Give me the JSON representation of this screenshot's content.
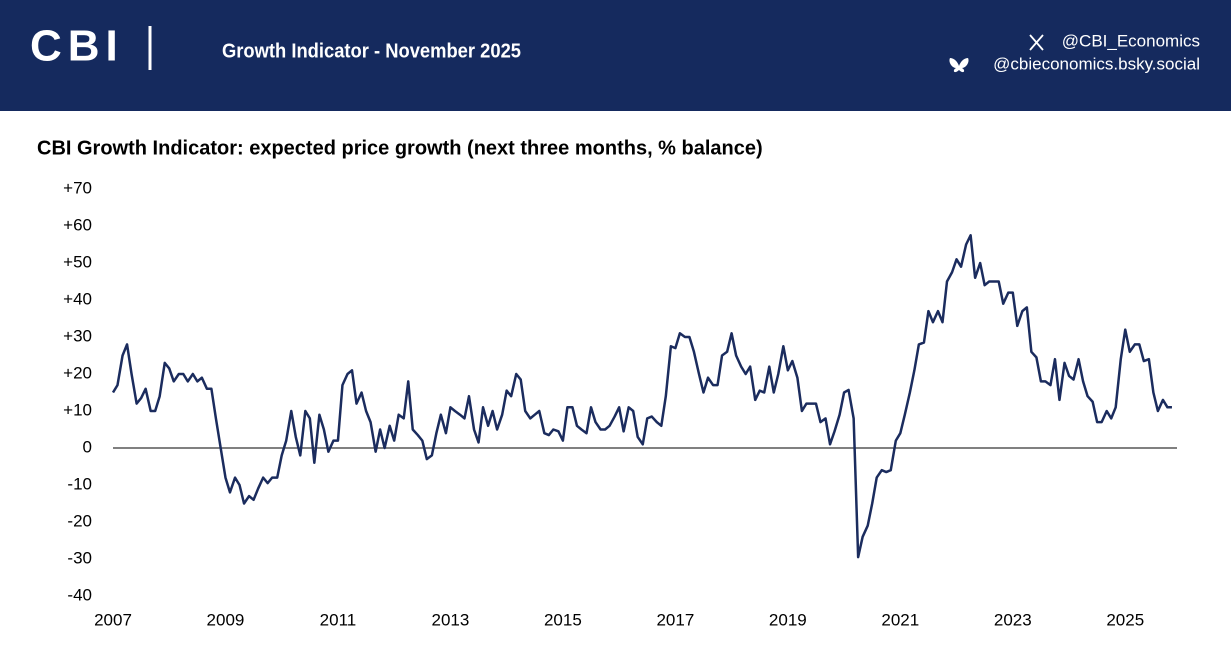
{
  "header": {
    "logo": "CBI",
    "title": "Growth Indicator - November 2025",
    "x_handle": "@CBI_Economics",
    "bsky_handle": "@cbieconomics.bsky.social"
  },
  "chart_data": {
    "type": "line",
    "title": "CBI Growth Indicator: expected price growth (next three months, % balance)",
    "color": "#1b2c5e",
    "x": [
      2007,
      2007.08,
      2007.17,
      2007.25,
      2007.33,
      2007.42,
      2007.5,
      2007.58,
      2007.67,
      2007.75,
      2007.83,
      2007.92,
      2008,
      2008.08,
      2008.17,
      2008.25,
      2008.33,
      2008.42,
      2008.5,
      2008.58,
      2008.67,
      2008.75,
      2008.83,
      2008.92,
      2009,
      2009.08,
      2009.17,
      2009.25,
      2009.33,
      2009.42,
      2009.5,
      2009.58,
      2009.67,
      2009.75,
      2009.83,
      2009.92,
      2010,
      2010.08,
      2010.17,
      2010.25,
      2010.33,
      2010.42,
      2010.5,
      2010.58,
      2010.67,
      2010.75,
      2010.83,
      2010.92,
      2011,
      2011.08,
      2011.17,
      2011.25,
      2011.33,
      2011.42,
      2011.5,
      2011.58,
      2011.67,
      2011.75,
      2011.83,
      2011.92,
      2012,
      2012.08,
      2012.17,
      2012.25,
      2012.33,
      2012.42,
      2012.5,
      2012.58,
      2012.67,
      2012.75,
      2012.83,
      2012.92,
      2013,
      2013.08,
      2013.17,
      2013.25,
      2013.33,
      2013.42,
      2013.5,
      2013.58,
      2013.67,
      2013.75,
      2013.83,
      2013.92,
      2014,
      2014.08,
      2014.17,
      2014.25,
      2014.33,
      2014.42,
      2014.5,
      2014.58,
      2014.67,
      2014.75,
      2014.83,
      2014.92,
      2015,
      2015.08,
      2015.17,
      2015.25,
      2015.33,
      2015.42,
      2015.5,
      2015.58,
      2015.67,
      2015.75,
      2015.83,
      2015.92,
      2016,
      2016.08,
      2016.17,
      2016.25,
      2016.33,
      2016.42,
      2016.5,
      2016.58,
      2016.67,
      2016.75,
      2016.83,
      2016.92,
      2017,
      2017.08,
      2017.17,
      2017.25,
      2017.33,
      2017.42,
      2017.5,
      2017.58,
      2017.67,
      2017.75,
      2017.83,
      2017.92,
      2018,
      2018.08,
      2018.17,
      2018.25,
      2018.33,
      2018.42,
      2018.5,
      2018.58,
      2018.67,
      2018.75,
      2018.83,
      2018.92,
      2019,
      2019.08,
      2019.17,
      2019.25,
      2019.33,
      2019.42,
      2019.5,
      2019.58,
      2019.67,
      2019.75,
      2019.83,
      2019.92,
      2020,
      2020.08,
      2020.17,
      2020.25,
      2020.33,
      2020.42,
      2020.5,
      2020.58,
      2020.67,
      2020.75,
      2020.83,
      2020.92,
      2021,
      2021.08,
      2021.17,
      2021.25,
      2021.33,
      2021.42,
      2021.5,
      2021.58,
      2021.67,
      2021.75,
      2021.83,
      2021.92,
      2022,
      2022.08,
      2022.17,
      2022.25,
      2022.33,
      2022.42,
      2022.5,
      2022.58,
      2022.67,
      2022.75,
      2022.83,
      2022.92,
      2023,
      2023.08,
      2023.17,
      2023.25,
      2023.33,
      2023.42,
      2023.5,
      2023.58,
      2023.67,
      2023.75,
      2023.83,
      2023.92,
      2024,
      2024.08,
      2024.17,
      2024.25,
      2024.33,
      2024.42,
      2024.5,
      2024.58,
      2024.67,
      2024.75,
      2024.83,
      2024.92,
      2025,
      2025.08,
      2025.17,
      2025.25,
      2025.33,
      2025.42,
      2025.5,
      2025.58,
      2025.67,
      2025.75,
      2025.83
    ],
    "values": [
      15,
      17,
      25,
      28,
      20,
      12,
      13.5,
      16,
      10,
      10,
      14,
      23,
      21.5,
      18,
      20,
      20,
      18,
      20,
      18,
      19,
      16,
      16,
      8,
      -0.5,
      -8,
      -12,
      -8,
      -10,
      -15,
      -13,
      -14,
      -11,
      -8,
      -9.5,
      -8,
      -8,
      -2,
      2,
      10,
      3,
      -2,
      10,
      8,
      -4,
      9,
      5,
      -1,
      2,
      2,
      17,
      20,
      21,
      12,
      15,
      10,
      7,
      -1,
      5,
      0,
      6,
      2,
      9,
      8,
      18,
      5,
      3.5,
      2,
      -3,
      -2,
      4,
      9,
      4,
      11,
      10,
      9,
      8,
      14,
      5,
      1.5,
      11,
      6,
      10,
      5,
      9,
      15.5,
      14,
      20,
      18.5,
      10,
      8,
      9,
      10,
      4,
      3.5,
      5,
      4.5,
      2,
      11,
      11,
      6,
      5,
      4,
      11,
      7,
      5,
      5,
      6,
      8.5,
      11,
      4.5,
      11,
      10,
      3,
      1,
      8,
      8.5,
      7,
      6,
      14,
      27.5,
      27,
      31,
      30,
      30,
      26,
      20,
      15,
      19,
      17,
      17,
      25,
      26,
      31,
      25,
      22,
      20,
      22,
      13,
      15.5,
      15,
      22,
      15,
      20,
      27.5,
      21,
      23.5,
      19,
      10,
      12,
      12,
      12,
      7,
      8,
      1,
      4.5,
      9,
      15,
      15.7,
      8,
      -29.5,
      -24,
      -21,
      -15,
      -8,
      -6,
      -6.5,
      -6,
      2,
      4,
      9,
      15,
      21,
      28,
      28.5,
      37,
      34,
      37,
      34,
      45,
      47.5,
      51,
      49,
      55,
      57.5,
      46,
      50,
      44,
      45,
      45,
      45,
      39,
      42,
      42,
      33,
      37,
      38,
      26,
      24.5,
      18,
      18,
      17,
      24,
      13,
      23,
      19.5,
      18.5,
      24,
      18,
      14,
      12.5,
      7,
      7,
      10,
      8,
      11,
      24,
      32,
      26,
      28,
      28,
      23.5,
      24,
      15,
      10,
      13,
      11,
      11
    ],
    "xlim": [
      2007,
      2025.92
    ],
    "xticks": [
      2007,
      2009,
      2011,
      2013,
      2015,
      2017,
      2019,
      2021,
      2023,
      2025
    ],
    "ylim": [
      -40,
      70
    ],
    "yticks": [
      {
        "value": 70,
        "label": "+70"
      },
      {
        "value": 60,
        "label": "+60"
      },
      {
        "value": 50,
        "label": "+50"
      },
      {
        "value": 40,
        "label": "+40"
      },
      {
        "value": 30,
        "label": "+30"
      },
      {
        "value": 20,
        "label": "+20"
      },
      {
        "value": 10,
        "label": "+10"
      },
      0,
      -10,
      -20,
      -30,
      -40
    ],
    "zero_line": true
  }
}
